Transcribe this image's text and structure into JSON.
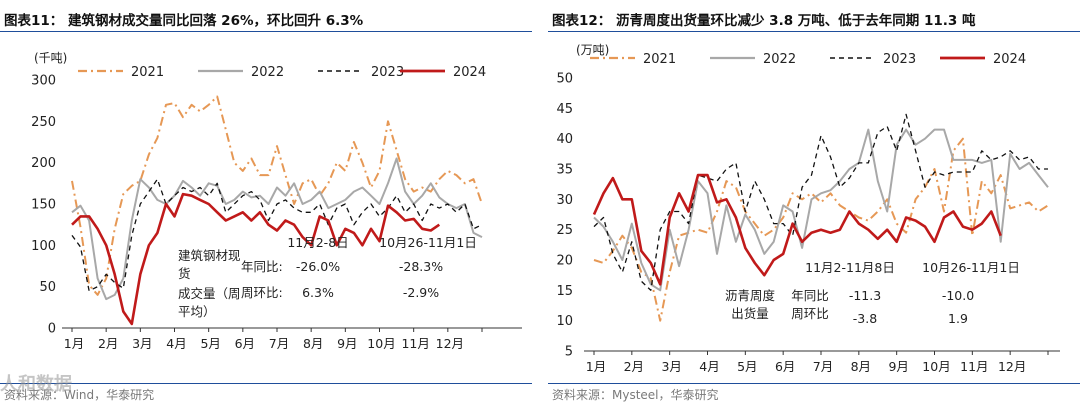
{
  "colors": {
    "y2021": "#e69855",
    "y2022": "#a8a8a8",
    "y2023": "#111111",
    "y2024": "#c01a1a",
    "rule": "#1f4e9b"
  },
  "watermark": "人和数据",
  "left": {
    "title": "图表11：  建筑钢材成交量同比回落 26%，环比回升 6.3%",
    "source": "资料来源：Wind，华泰研究",
    "chart_data": {
      "type": "line",
      "unit": "(千吨)",
      "ylim": [
        0,
        300
      ],
      "yticks": [
        "0",
        "50",
        "100",
        "150",
        "200",
        "250",
        "300"
      ],
      "xticks": [
        "1月",
        "2月",
        "3月",
        "4月",
        "5月",
        "6月",
        "7月",
        "8月",
        "9月",
        "10月",
        "11月",
        "12月"
      ],
      "series": [
        {
          "name": "2021",
          "style": "dashdot",
          "colorKey": "y2021",
          "values": [
            178,
            122,
            52,
            40,
            60,
            120,
            162,
            172,
            178,
            210,
            230,
            270,
            272,
            255,
            270,
            262,
            270,
            280,
            240,
            200,
            190,
            205,
            185,
            185,
            220,
            185,
            150,
            175,
            180,
            160,
            175,
            200,
            190,
            225,
            200,
            170,
            190,
            250,
            215,
            180,
            165,
            170,
            165,
            180,
            190,
            185,
            175,
            180,
            150
          ]
        },
        {
          "name": "2022",
          "style": "solid",
          "colorKey": "y2022",
          "values": [
            140,
            148,
            130,
            60,
            35,
            40,
            60,
            130,
            180,
            170,
            155,
            150,
            160,
            178,
            170,
            160,
            175,
            172,
            150,
            155,
            165,
            158,
            160,
            150,
            170,
            160,
            175,
            150,
            155,
            165,
            145,
            150,
            155,
            165,
            170,
            160,
            150,
            175,
            205,
            165,
            150,
            160,
            175,
            158,
            150,
            145,
            150,
            115,
            110
          ]
        },
        {
          "name": "2023",
          "style": "dashed",
          "colorKey": "y2023",
          "values": [
            112,
            98,
            45,
            50,
            65,
            55,
            48,
            112,
            150,
            165,
            180,
            150,
            160,
            170,
            165,
            170,
            160,
            175,
            140,
            150,
            160,
            165,
            155,
            130,
            150,
            155,
            145,
            140,
            140,
            150,
            125,
            145,
            150,
            125,
            140,
            150,
            135,
            145,
            160,
            140,
            150,
            130,
            150,
            145,
            150,
            140,
            150,
            120,
            125
          ]
        },
        {
          "name": "2024",
          "style": "solid",
          "colorKey": "y2024",
          "values": [
            125,
            135,
            135,
            120,
            100,
            65,
            20,
            5,
            65,
            100,
            115,
            150,
            135,
            162,
            160,
            155,
            150,
            140,
            130,
            135,
            140,
            130,
            140,
            125,
            118,
            130,
            125,
            110,
            100,
            135,
            130,
            100,
            120,
            115,
            100,
            120,
            105,
            148,
            140,
            130,
            132,
            120,
            118,
            125
          ]
        }
      ],
      "annotation": {
        "label_line1": "建筑钢材现",
        "label_line2": "货",
        "label_line3": "成交量（周",
        "label_line4": "平均）",
        "col1": "11月2-8日",
        "col2": "10月26-11月1日",
        "row1_label": "年同比:",
        "row1_val1": "-26.0%",
        "row1_val2": "-28.3%",
        "row2_label": "周环比:",
        "row2_val1": "6.3%",
        "row2_val2": "-2.9%"
      }
    }
  },
  "right": {
    "title": "图表12：  沥青周度出货量环比减少 3.8 万吨、低于去年同期 11.3 吨",
    "source": "资料来源：Mysteel，华泰研究",
    "chart_data": {
      "type": "line",
      "unit": "(万吨)",
      "ylim": [
        5,
        50
      ],
      "yticks": [
        "5",
        "10",
        "15",
        "20",
        "25",
        "30",
        "35",
        "40",
        "45",
        "50"
      ],
      "xticks": [
        "1月",
        "2月",
        "3月",
        "4月",
        "5月",
        "6月",
        "7月",
        "8月",
        "9月",
        "10月",
        "11月",
        "12月"
      ],
      "series": [
        {
          "name": "2021",
          "style": "dashdot",
          "colorKey": "y2021",
          "values": [
            20,
            19.5,
            21.5,
            24,
            22,
            18,
            17,
            10,
            18,
            24,
            24.5,
            25,
            24.5,
            28,
            33,
            32,
            28,
            26,
            24,
            25,
            27,
            31,
            30,
            31,
            29.5,
            31,
            29,
            28,
            27,
            26.5,
            28,
            30,
            26,
            24.5,
            30,
            32,
            35,
            28,
            38,
            40,
            24,
            33,
            31,
            34,
            28.5,
            29,
            29.5,
            28,
            29
          ]
        },
        {
          "name": "2022",
          "style": "solid",
          "colorKey": "y2022",
          "values": [
            27,
            25.5,
            23,
            20,
            26,
            19.5,
            16,
            15,
            25,
            19,
            25,
            33,
            31,
            21,
            29,
            23,
            27.5,
            25,
            21,
            23,
            29,
            28,
            22,
            30,
            31,
            31.5,
            33,
            35,
            36,
            41.5,
            33,
            28,
            39,
            41.5,
            39,
            40,
            41.5,
            41.5,
            36.5,
            36.5,
            36.5,
            36,
            36.5,
            23,
            37.5,
            35,
            36,
            34,
            32
          ]
        },
        {
          "name": "2023",
          "style": "dashed",
          "colorKey": "y2023",
          "values": [
            25.5,
            27,
            21,
            18,
            23,
            16.5,
            15,
            25,
            28,
            28,
            26,
            34,
            33.5,
            33,
            35,
            36,
            28,
            33,
            30,
            26,
            26,
            24,
            32,
            34,
            40.5,
            37,
            32,
            33.5,
            36,
            36,
            41,
            42,
            38,
            44,
            38,
            32,
            34.5,
            34,
            34.5,
            34.5,
            34.5,
            38,
            36.5,
            37,
            38,
            36.5,
            37,
            35,
            35
          ]
        },
        {
          "name": "2024",
          "style": "solid",
          "colorKey": "y2024",
          "values": [
            27.5,
            31,
            33.5,
            30,
            30,
            21.5,
            19.5,
            16,
            27,
            31,
            28,
            34,
            34,
            29.5,
            30,
            27,
            22,
            19.5,
            17.5,
            20,
            21,
            26,
            23,
            24.5,
            25,
            24.5,
            25,
            28,
            26,
            25,
            23.5,
            25,
            23,
            27,
            26.5,
            25.5,
            23,
            27,
            28,
            25.5,
            25,
            26,
            28,
            24
          ]
        }
      ],
      "annotation": {
        "col1": "11月2-11月8日",
        "col2": "10月26-11月1日",
        "label_line1": "沥青周度",
        "label_line2": "出货量",
        "row1_label": "年同比",
        "row1_val1": "-11.3",
        "row1_val2": "-10.0",
        "row2_label": "周环比",
        "row2_val1": "-3.8",
        "row2_val2": "1.9"
      }
    }
  }
}
